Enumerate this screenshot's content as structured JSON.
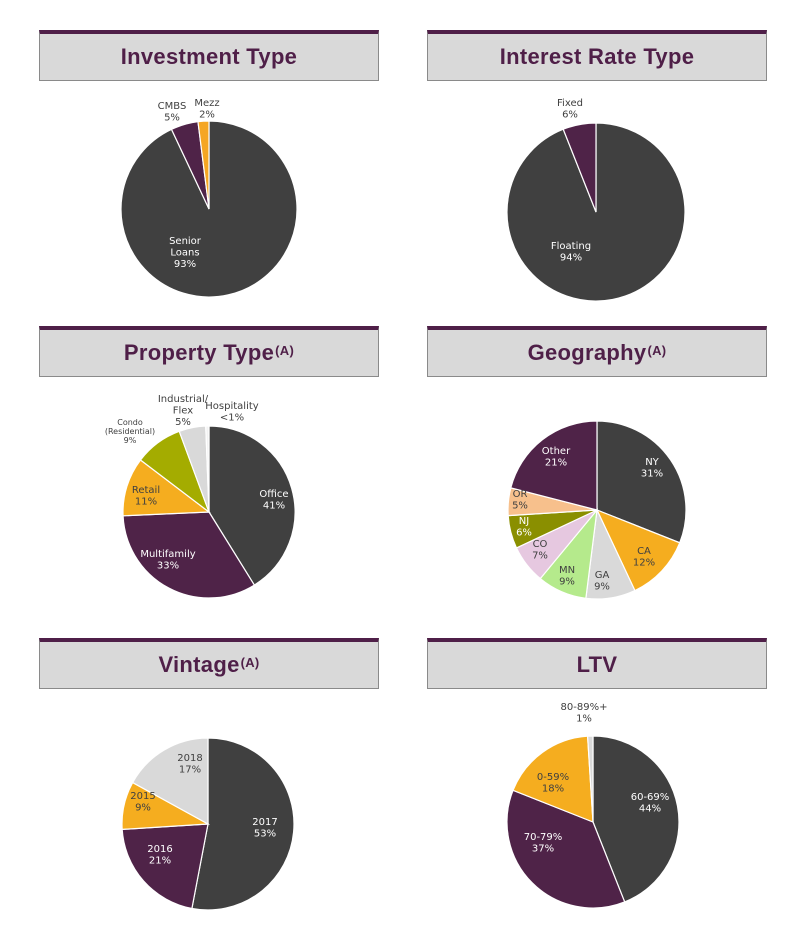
{
  "colors": {
    "header_bg": "#d9d9d9",
    "header_text": "#4f1f48",
    "header_border": "#4f1f48"
  },
  "charts": [
    {
      "id": "investment-type",
      "title": "Investment Type",
      "superscript": "",
      "slices": [
        {
          "label": "Senior Loans",
          "pct": "93%",
          "value": 93,
          "color": "#404040"
        },
        {
          "label": "CMBS",
          "pct": "5%",
          "value": 5,
          "color": "#4f2348"
        },
        {
          "label": "Mezz",
          "pct": "2%",
          "value": 2,
          "color": "#f5a623"
        }
      ]
    },
    {
      "id": "interest-rate-type",
      "title": "Interest Rate Type",
      "superscript": "",
      "slices": [
        {
          "label": "Floating",
          "pct": "94%",
          "value": 94,
          "color": "#404040"
        },
        {
          "label": "Fixed",
          "pct": "6%",
          "value": 6,
          "color": "#4f2348"
        }
      ]
    },
    {
      "id": "property-type",
      "title": "Property Type",
      "superscript": "(A)",
      "slices": [
        {
          "label": "Office",
          "pct": "41%",
          "value": 41,
          "color": "#404040"
        },
        {
          "label": "Multifamily",
          "pct": "33%",
          "value": 33,
          "color": "#4f2348"
        },
        {
          "label": "Retail",
          "pct": "11%",
          "value": 11,
          "color": "#f5ad1f"
        },
        {
          "label": "Condo (Residential)",
          "pct": "9%",
          "value": 9,
          "color": "#a4ac00"
        },
        {
          "label": "Industrial/ Flex",
          "pct": "5%",
          "value": 5,
          "color": "#d9d9d9"
        },
        {
          "label": "Hospitality",
          "pct": "<1%",
          "value": 0.6,
          "color": "#f2f2f2"
        }
      ]
    },
    {
      "id": "geography",
      "title": "Geography",
      "superscript": "(A)",
      "slices": [
        {
          "label": "NY",
          "pct": "31%",
          "value": 31,
          "color": "#404040"
        },
        {
          "label": "CA",
          "pct": "12%",
          "value": 12,
          "color": "#f5ad1f"
        },
        {
          "label": "GA",
          "pct": "9%",
          "value": 9,
          "color": "#d9d9d9"
        },
        {
          "label": "MN",
          "pct": "9%",
          "value": 9,
          "color": "#b5ea8c"
        },
        {
          "label": "CO",
          "pct": "7%",
          "value": 7,
          "color": "#e6c8e0"
        },
        {
          "label": "NJ",
          "pct": "6%",
          "value": 6,
          "color": "#8a8f00"
        },
        {
          "label": "OR",
          "pct": "5%",
          "value": 5,
          "color": "#f7c08c"
        },
        {
          "label": "Other",
          "pct": "21%",
          "value": 21,
          "color": "#4f2348"
        }
      ]
    },
    {
      "id": "vintage",
      "title": "Vintage",
      "superscript": "(A)",
      "slices": [
        {
          "label": "2017",
          "pct": "53%",
          "value": 53,
          "color": "#404040"
        },
        {
          "label": "2016",
          "pct": "21%",
          "value": 21,
          "color": "#4f2348"
        },
        {
          "label": "2015",
          "pct": "9%",
          "value": 9,
          "color": "#f5ad1f"
        },
        {
          "label": "2018",
          "pct": "17%",
          "value": 17,
          "color": "#d9d9d9"
        }
      ]
    },
    {
      "id": "ltv",
      "title": "LTV",
      "superscript": "",
      "slices": [
        {
          "label": "60-69%",
          "pct": "44%",
          "value": 44,
          "color": "#404040"
        },
        {
          "label": "70-79%",
          "pct": "37%",
          "value": 37,
          "color": "#4f2348"
        },
        {
          "label": "0-59%",
          "pct": "18%",
          "value": 18,
          "color": "#f5ad1f"
        },
        {
          "label": "80-89%+",
          "pct": "1%",
          "value": 1,
          "color": "#d9d9d9"
        }
      ]
    }
  ],
  "chart_data": [
    {
      "type": "pie",
      "title": "Investment Type",
      "categories": [
        "Senior Loans",
        "CMBS",
        "Mezz"
      ],
      "values": [
        93,
        5,
        2
      ]
    },
    {
      "type": "pie",
      "title": "Interest Rate Type",
      "categories": [
        "Floating",
        "Fixed"
      ],
      "values": [
        94,
        6
      ]
    },
    {
      "type": "pie",
      "title": "Property Type (A)",
      "categories": [
        "Office",
        "Multifamily",
        "Retail",
        "Condo (Residential)",
        "Industrial/ Flex",
        "Hospitality"
      ],
      "values": [
        41,
        33,
        11,
        9,
        5,
        0.6
      ]
    },
    {
      "type": "pie",
      "title": "Geography (A)",
      "categories": [
        "NY",
        "CA",
        "GA",
        "MN",
        "CO",
        "NJ",
        "OR",
        "Other"
      ],
      "values": [
        31,
        12,
        9,
        9,
        7,
        6,
        5,
        21
      ]
    },
    {
      "type": "pie",
      "title": "Vintage (A)",
      "categories": [
        "2017",
        "2016",
        "2015",
        "2018"
      ],
      "values": [
        53,
        21,
        9,
        17
      ]
    },
    {
      "type": "pie",
      "title": "LTV",
      "categories": [
        "60-69%",
        "70-79%",
        "0-59%",
        "80-89%+"
      ],
      "values": [
        44,
        37,
        18,
        1
      ]
    }
  ]
}
